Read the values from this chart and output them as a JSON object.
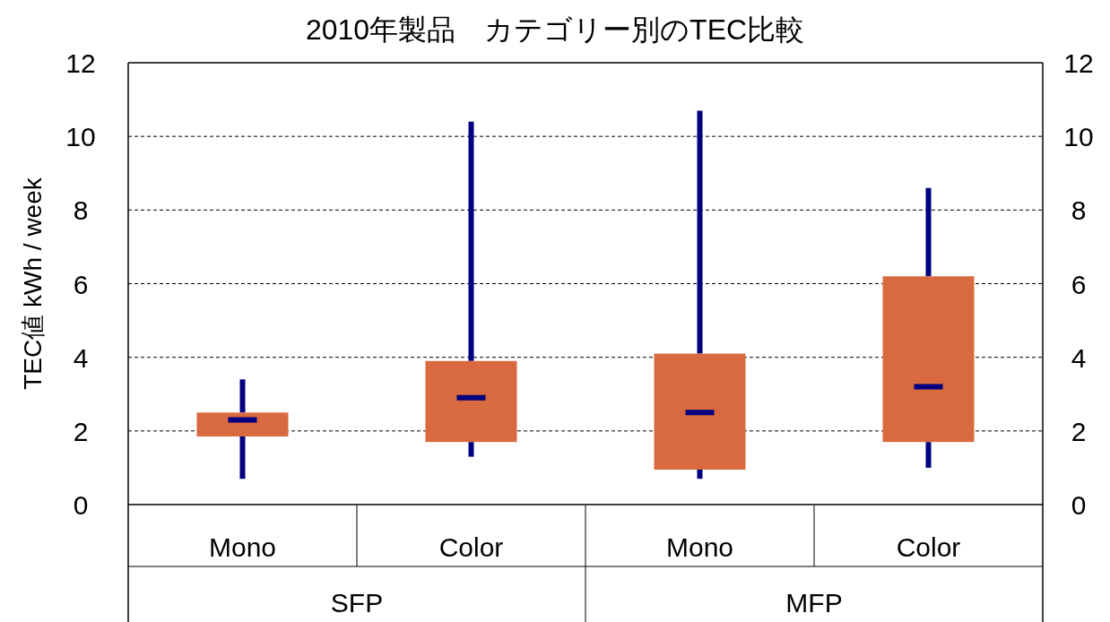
{
  "chart_data": {
    "type": "box",
    "title": "2010年製品　カテゴリー別のTEC比較",
    "ylabel": "TEC値  kWh / week",
    "categories": [
      "Mono",
      "Color",
      "Mono",
      "Color"
    ],
    "series": [
      {
        "color": "#d9693f",
        "boxes": [
          {
            "low": 0.7,
            "q1": 1.85,
            "median": 2.3,
            "q3": 2.5,
            "high": 3.4
          },
          {
            "low": 1.3,
            "q1": 1.7,
            "median": 2.9,
            "q3": 3.9,
            "high": 10.4
          },
          {
            "low": 0.7,
            "q1": 0.95,
            "median": 2.5,
            "q3": 4.1,
            "high": 10.7
          },
          {
            "low": 1.0,
            "q1": 1.7,
            "median": 3.2,
            "q3": 6.2,
            "high": 8.6
          }
        ]
      }
    ],
    "ylim": [
      0,
      12
    ],
    "yticks": [
      0,
      2,
      4,
      6,
      8,
      10,
      12
    ],
    "y2lim": [
      0,
      12
    ],
    "y2ticks": [
      0,
      2,
      4,
      6,
      8,
      10,
      12
    ],
    "grid": "y",
    "annotations": [
      "SFP",
      "MFP"
    ]
  }
}
